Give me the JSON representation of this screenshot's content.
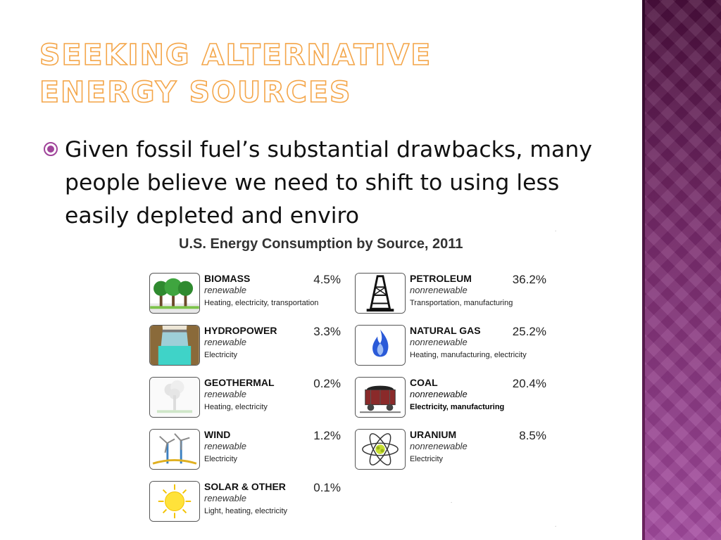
{
  "slide": {
    "title": "Seeking Alternative Energy Sources",
    "bullet_text": "Given fossil fuel’s substantial drawbacks, many people believe we need to shift to using less easily depleted and enviro"
  },
  "infographic": {
    "title": "U.S. Energy Consumption by Source, 2011",
    "renewable": [
      {
        "name": "BIOMASS",
        "kind": "renewable",
        "uses": "Heating, electricity, transportation",
        "percent": "4.5%",
        "icon": "trees-icon"
      },
      {
        "name": "HYDROPOWER",
        "kind": "renewable",
        "uses": "Electricity",
        "percent": "3.3%",
        "icon": "dam-icon"
      },
      {
        "name": "GEOTHERMAL",
        "kind": "renewable",
        "uses": "Heating, electricity",
        "percent": "0.2%",
        "icon": "geyser-icon"
      },
      {
        "name": "WIND",
        "kind": "renewable",
        "uses": "Electricity",
        "percent": "1.2%",
        "icon": "wind-turbine-icon"
      },
      {
        "name": "SOLAR & OTHER",
        "kind": "renewable",
        "uses": "Light, heating, electricity",
        "percent": "0.1%",
        "icon": "sun-icon"
      }
    ],
    "nonrenewable": [
      {
        "name": "PETROLEUM",
        "kind": "nonrenewable",
        "uses": "Transportation, manufacturing",
        "percent": "36.2%",
        "icon": "oil-derrick-icon"
      },
      {
        "name": "NATURAL GAS",
        "kind": "nonrenewable",
        "uses": "Heating, manufacturing, electricity",
        "percent": "25.2%",
        "icon": "gas-flame-icon"
      },
      {
        "name": "COAL",
        "kind": "nonrenewable",
        "uses": "Electricity, manufacturing",
        "percent": "20.4%",
        "icon": "coal-cart-icon"
      },
      {
        "name": "URANIUM",
        "kind": "nonrenewable",
        "uses": "Electricity",
        "percent": "8.5%",
        "icon": "atom-icon"
      }
    ]
  },
  "colors": {
    "title_outline": "#f4a64a",
    "bullet": "#a0449a",
    "side_band_top": "#4a0f3c",
    "side_band_bottom": "#a44ba0"
  }
}
